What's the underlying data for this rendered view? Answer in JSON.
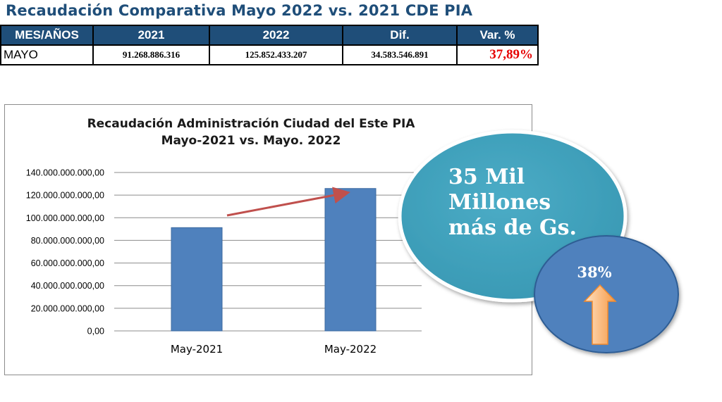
{
  "page": {
    "title": "Recaudación Comparativa Mayo 2022 vs. 2021 CDE PIA"
  },
  "summary_table": {
    "headers": [
      "MES/AÑOS",
      "2021",
      "2022",
      "Dif.",
      "Var. %"
    ],
    "row": {
      "month": "MAYO",
      "value_2021": "91.268.886.316",
      "value_2022": "125.852.433.207",
      "difference": "34.583.546.891",
      "variation": "37,89%"
    }
  },
  "callout": {
    "lines": [
      "35 Mil",
      "Millones",
      "más de Gs."
    ]
  },
  "percent_badge": {
    "label": "38%"
  },
  "colors": {
    "header_bg": "#1f4e79",
    "bar": "#4f81bd",
    "callout_bubble": "#4bacc6",
    "percent_circle": "#4f81bd",
    "trend_arrow": "#c0504d",
    "up_arrow": "#f8a65b",
    "variation_text": "#e60000"
  },
  "chart_data": {
    "type": "bar",
    "title": "Recaudación Administración Ciudad del Este PIA",
    "subtitle": "Mayo-2021 vs. Mayo. 2022",
    "categories": [
      "May-2021",
      "May-2022"
    ],
    "values": [
      91268886316,
      125852433207
    ],
    "ylim": [
      0,
      140000000000
    ],
    "y_ticks": [
      0,
      20000000000,
      40000000000,
      60000000000,
      80000000000,
      100000000000,
      120000000000,
      140000000000
    ],
    "y_tick_labels": [
      "0,00",
      "20.000.000.000,00",
      "40.000.000.000,00",
      "60.000.000.000,00",
      "80.000.000.000,00",
      "100.000.000.000,00",
      "120.000.000.000,00",
      "140.000.000.000,00"
    ],
    "grid": true,
    "legend": "none",
    "xlabel": "",
    "ylabel": ""
  }
}
